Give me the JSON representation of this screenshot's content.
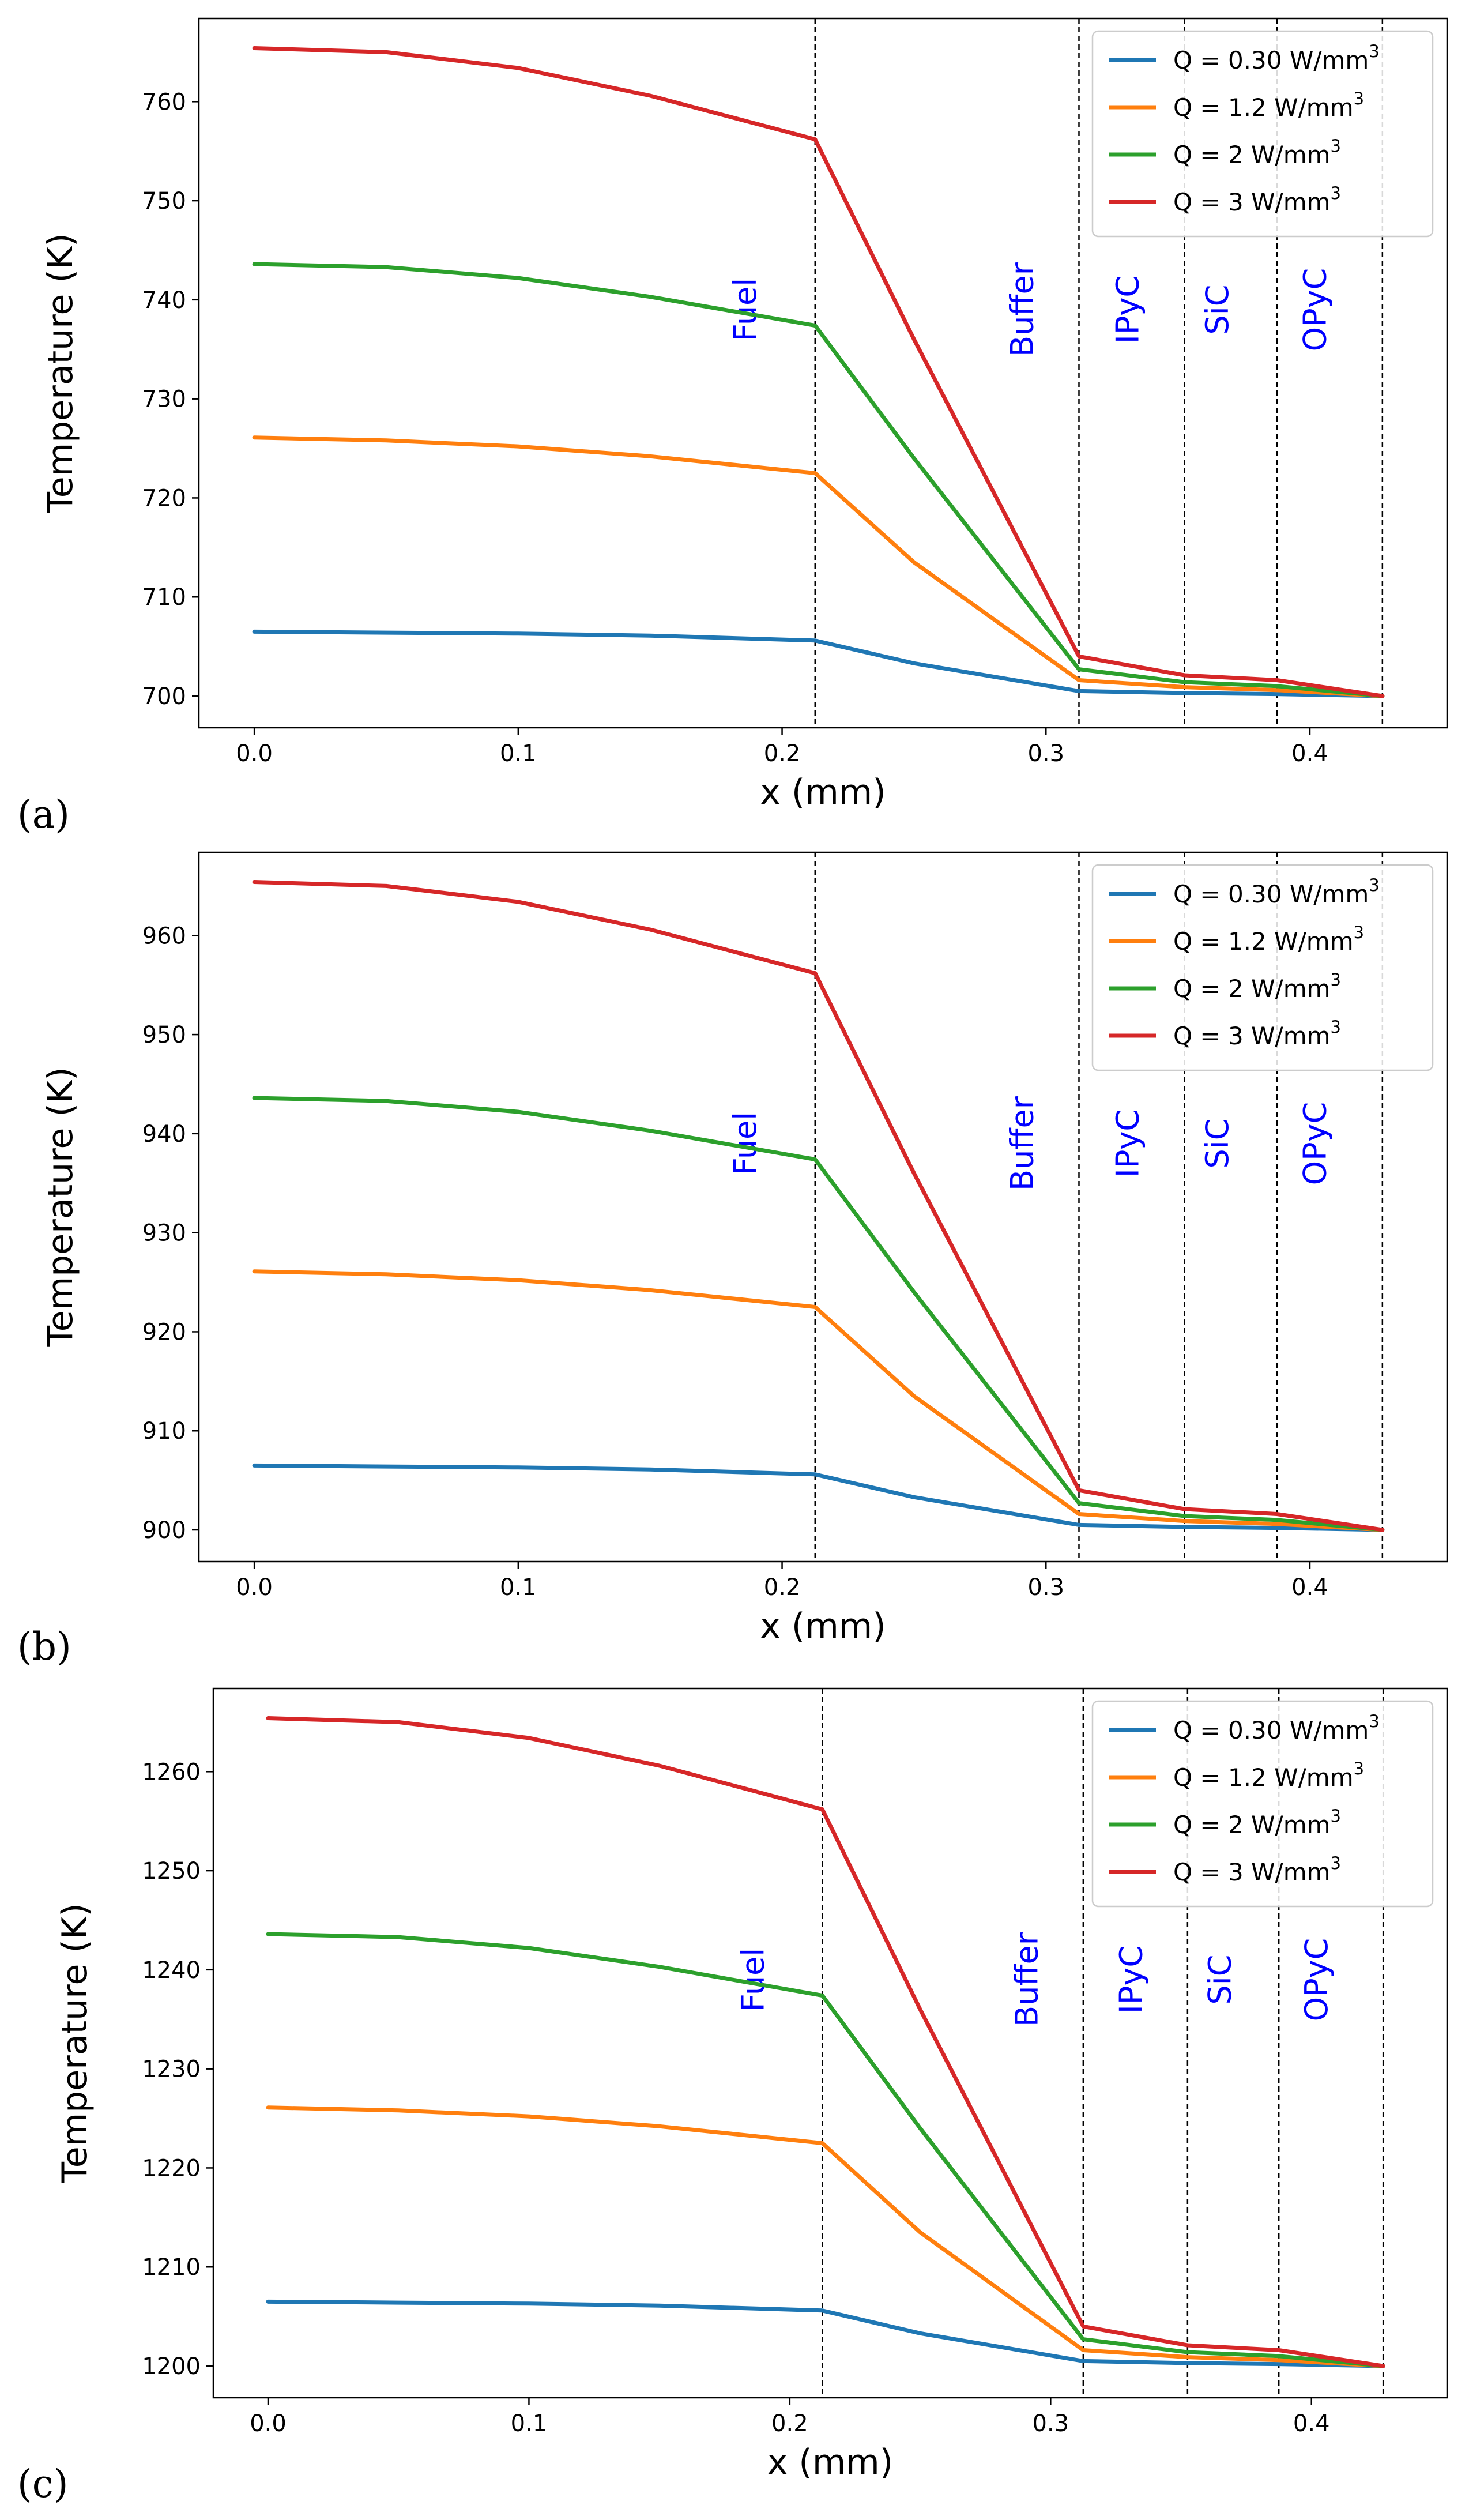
{
  "chart_data": [
    {
      "type": "line",
      "panel_label": "(a)",
      "xlabel": "x (mm)",
      "ylabel": "Temperature (K)",
      "xlim": [
        -0.021,
        0.452
      ],
      "ylim": [
        696.8,
        768.4
      ],
      "xticks": [
        0.0,
        0.1,
        0.2,
        0.3,
        0.4
      ],
      "xtick_labels": [
        "0.0",
        "0.1",
        "0.2",
        "0.3",
        "0.4"
      ],
      "yticks": [
        700,
        710,
        720,
        730,
        740,
        750,
        760
      ],
      "ytick_labels": [
        "700",
        "710",
        "720",
        "730",
        "740",
        "750",
        "760"
      ],
      "boundaries": [
        0.2125,
        0.3125,
        0.3525,
        0.3875,
        0.4275
      ],
      "regions": [
        "Fuel",
        "Buffer",
        "IPyC",
        "SiC",
        "OPyC"
      ],
      "legend_position": "top-right",
      "series": [
        {
          "name": "Q = 0.30 W/mm",
          "sup": "3",
          "color": "#1f77b4",
          "x": [
            0.0,
            0.05,
            0.1,
            0.15,
            0.2125,
            0.25,
            0.3125,
            0.3525,
            0.3875,
            0.4275
          ],
          "y": [
            706.5,
            706.4,
            706.3,
            706.1,
            705.6,
            703.3,
            700.5,
            700.3,
            700.2,
            700.0
          ]
        },
        {
          "name": "Q = 1.2 W/mm",
          "sup": "3",
          "color": "#ff7f0e",
          "x": [
            0.0,
            0.05,
            0.1,
            0.15,
            0.2125,
            0.25,
            0.3125,
            0.3525,
            0.3875,
            0.4275
          ],
          "y": [
            726.1,
            725.8,
            725.2,
            724.2,
            722.5,
            713.5,
            701.6,
            700.9,
            700.6,
            700.0
          ]
        },
        {
          "name": "Q = 2 W/mm",
          "sup": "3",
          "color": "#2ca02c",
          "x": [
            0.0,
            0.05,
            0.1,
            0.15,
            0.2125,
            0.25,
            0.3125,
            0.3525,
            0.3875,
            0.4275
          ],
          "y": [
            743.6,
            743.3,
            742.2,
            740.3,
            737.4,
            724.0,
            702.7,
            701.4,
            701.0,
            700.0
          ]
        },
        {
          "name": "Q = 3 W/mm",
          "sup": "3",
          "color": "#d62728",
          "x": [
            0.0,
            0.05,
            0.1,
            0.15,
            0.2125,
            0.25,
            0.3125,
            0.3525,
            0.3875,
            0.4275
          ],
          "y": [
            765.4,
            765.0,
            763.4,
            760.6,
            756.2,
            736.0,
            704.0,
            702.1,
            701.6,
            700.0
          ]
        }
      ]
    },
    {
      "type": "line",
      "panel_label": "(b)",
      "xlabel": "x (mm)",
      "ylabel": "Temperature (K)",
      "xlim": [
        -0.021,
        0.452
      ],
      "ylim": [
        896.8,
        968.4
      ],
      "xticks": [
        0.0,
        0.1,
        0.2,
        0.3,
        0.4
      ],
      "xtick_labels": [
        "0.0",
        "0.1",
        "0.2",
        "0.3",
        "0.4"
      ],
      "yticks": [
        900,
        910,
        920,
        930,
        940,
        950,
        960
      ],
      "ytick_labels": [
        "900",
        "910",
        "920",
        "930",
        "940",
        "950",
        "960"
      ],
      "boundaries": [
        0.2125,
        0.3125,
        0.3525,
        0.3875,
        0.4275
      ],
      "regions": [
        "Fuel",
        "Buffer",
        "IPyC",
        "SiC",
        "OPyC"
      ],
      "legend_position": "top-right",
      "series": [
        {
          "name": "Q = 0.30 W/mm",
          "sup": "3",
          "color": "#1f77b4",
          "x": [
            0.0,
            0.05,
            0.1,
            0.15,
            0.2125,
            0.25,
            0.3125,
            0.3525,
            0.3875,
            0.4275
          ],
          "y": [
            906.5,
            906.4,
            906.3,
            906.1,
            905.6,
            903.3,
            900.5,
            900.3,
            900.2,
            900.0
          ]
        },
        {
          "name": "Q = 1.2 W/mm",
          "sup": "3",
          "color": "#ff7f0e",
          "x": [
            0.0,
            0.05,
            0.1,
            0.15,
            0.2125,
            0.25,
            0.3125,
            0.3525,
            0.3875,
            0.4275
          ],
          "y": [
            926.1,
            925.8,
            925.2,
            924.2,
            922.5,
            913.5,
            901.6,
            900.9,
            900.6,
            900.0
          ]
        },
        {
          "name": "Q = 2 W/mm",
          "sup": "3",
          "color": "#2ca02c",
          "x": [
            0.0,
            0.05,
            0.1,
            0.15,
            0.2125,
            0.25,
            0.3125,
            0.3525,
            0.3875,
            0.4275
          ],
          "y": [
            943.6,
            943.3,
            942.2,
            940.3,
            937.4,
            924.0,
            902.7,
            901.4,
            901.0,
            900.0
          ]
        },
        {
          "name": "Q = 3 W/mm",
          "sup": "3",
          "color": "#d62728",
          "x": [
            0.0,
            0.05,
            0.1,
            0.15,
            0.2125,
            0.25,
            0.3125,
            0.3525,
            0.3875,
            0.4275
          ],
          "y": [
            965.4,
            965.0,
            963.4,
            960.6,
            956.2,
            936.0,
            904.0,
            902.1,
            901.6,
            900.0
          ]
        }
      ]
    },
    {
      "type": "line",
      "panel_label": "(c)",
      "xlabel": "x (mm)",
      "ylabel": "Temperature (K)",
      "xlim": [
        -0.021,
        0.452
      ],
      "ylim": [
        1196.8,
        1268.4
      ],
      "xticks": [
        0.0,
        0.1,
        0.2,
        0.3,
        0.4
      ],
      "xtick_labels": [
        "0.0",
        "0.1",
        "0.2",
        "0.3",
        "0.4"
      ],
      "yticks": [
        1200,
        1210,
        1220,
        1230,
        1240,
        1250,
        1260
      ],
      "ytick_labels": [
        "1200",
        "1210",
        "1220",
        "1230",
        "1240",
        "1250",
        "1260"
      ],
      "boundaries": [
        0.2125,
        0.3125,
        0.3525,
        0.3875,
        0.4275
      ],
      "regions": [
        "Fuel",
        "Buffer",
        "IPyC",
        "SiC",
        "OPyC"
      ],
      "legend_position": "top-right",
      "series": [
        {
          "name": "Q = 0.30 W/mm",
          "sup": "3",
          "color": "#1f77b4",
          "x": [
            0.0,
            0.05,
            0.1,
            0.15,
            0.2125,
            0.25,
            0.3125,
            0.3525,
            0.3875,
            0.4275
          ],
          "y": [
            1206.5,
            1206.4,
            1206.3,
            1206.1,
            1205.6,
            1203.3,
            1200.5,
            1200.3,
            1200.2,
            1200.0
          ]
        },
        {
          "name": "Q = 1.2 W/mm",
          "sup": "3",
          "color": "#ff7f0e",
          "x": [
            0.0,
            0.05,
            0.1,
            0.15,
            0.2125,
            0.25,
            0.3125,
            0.3525,
            0.3875,
            0.4275
          ],
          "y": [
            1226.1,
            1225.8,
            1225.2,
            1224.2,
            1222.5,
            1213.5,
            1201.6,
            1200.9,
            1200.6,
            1200.0
          ]
        },
        {
          "name": "Q = 2 W/mm",
          "sup": "3",
          "color": "#2ca02c",
          "x": [
            0.0,
            0.05,
            0.1,
            0.15,
            0.2125,
            0.25,
            0.3125,
            0.3525,
            0.3875,
            0.4275
          ],
          "y": [
            1243.6,
            1243.3,
            1242.2,
            1240.3,
            1237.4,
            1224.0,
            1202.7,
            1201.4,
            1201.0,
            1200.0
          ]
        },
        {
          "name": "Q = 3 W/mm",
          "sup": "3",
          "color": "#d62728",
          "x": [
            0.0,
            0.05,
            0.1,
            0.15,
            0.2125,
            0.25,
            0.3125,
            0.3525,
            0.3875,
            0.4275
          ],
          "y": [
            1265.4,
            1265.0,
            1263.4,
            1260.6,
            1256.2,
            1236.0,
            1204.0,
            1202.1,
            1201.6,
            1200.0
          ]
        }
      ]
    }
  ]
}
